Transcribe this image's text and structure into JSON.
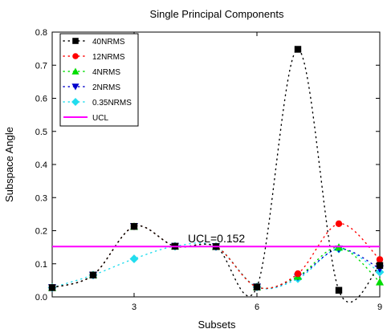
{
  "chart_data": {
    "type": "scatter",
    "title": "Single Principal Components",
    "xlabel": "Subsets",
    "ylabel": "Subspace Angle",
    "xlim": [
      1,
      9
    ],
    "ylim": [
      0,
      0.8
    ],
    "x_ticks": [
      3,
      6,
      9
    ],
    "y_ticks": [
      0.0,
      0.1,
      0.2,
      0.3,
      0.4,
      0.5,
      0.6,
      0.7,
      0.8
    ],
    "x": [
      1,
      2,
      3,
      4,
      5,
      6,
      7,
      8,
      9
    ],
    "series": [
      {
        "name": "40NRMS",
        "color": "#000000",
        "marker": "square",
        "values": [
          0.028,
          0.066,
          0.213,
          0.153,
          0.152,
          0.03,
          0.748,
          0.02,
          0.095
        ]
      },
      {
        "name": "12NRMS",
        "color": "#ff0000",
        "marker": "circle",
        "values": [
          0.028,
          0.066,
          0.213,
          0.153,
          0.152,
          0.03,
          0.07,
          0.221,
          0.113
        ]
      },
      {
        "name": "4NRMS",
        "color": "#00dd00",
        "marker": "triangle-up",
        "values": [
          0.028,
          0.066,
          0.213,
          0.153,
          0.152,
          0.03,
          0.062,
          0.15,
          0.045
        ]
      },
      {
        "name": "2NRMS",
        "color": "#0000cc",
        "marker": "triangle-down",
        "values": [
          0.028,
          0.066,
          0.213,
          0.153,
          0.152,
          0.03,
          0.06,
          0.145,
          0.085
        ]
      },
      {
        "name": "0.35NRMS",
        "color": "#22ddee",
        "marker": "diamond",
        "values": [
          0.028,
          0.066,
          0.115,
          0.153,
          0.152,
          0.03,
          0.055,
          0.145,
          0.075
        ]
      }
    ],
    "ucl": {
      "name": "UCL",
      "value": 0.152,
      "color": "#ff00ff",
      "annotation": "UCL=0.152"
    },
    "legend_position": "top-left",
    "grid": false
  }
}
